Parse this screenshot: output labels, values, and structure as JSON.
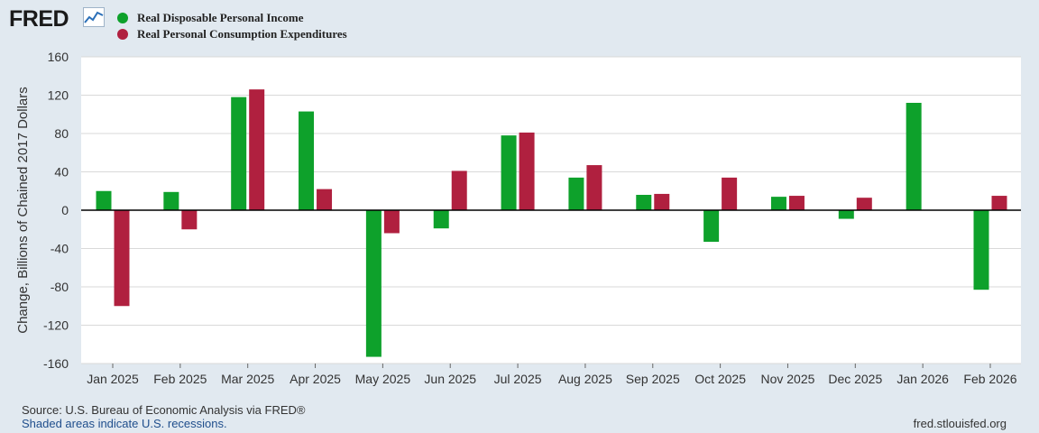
{
  "brand": {
    "logo_text": "FRED"
  },
  "colors": {
    "series1": "#0ea12b",
    "series2": "#b0203f",
    "background": "#e1e9f0",
    "plot_bg": "#ffffff"
  },
  "chart_data": {
    "type": "bar",
    "title": "",
    "xlabel": "",
    "ylabel": "Change, Billions of Chained 2017 Dollars",
    "ylim": [
      -160,
      160
    ],
    "yticks": [
      160,
      120,
      80,
      40,
      0,
      -40,
      -80,
      -120,
      -160
    ],
    "grid": true,
    "legend_position": "top-left",
    "categories": [
      "Jan 2025",
      "Feb 2025",
      "Mar 2025",
      "Apr 2025",
      "May 2025",
      "Jun 2025",
      "Jul 2025",
      "Aug 2025",
      "Sep 2025",
      "Oct 2025",
      "Nov 2025",
      "Dec 2025",
      "Jan 2026",
      "Feb 2026"
    ],
    "series": [
      {
        "name": "Real Disposable Personal Income",
        "color": "#0ea12b",
        "values": [
          20,
          19,
          118,
          103,
          -153,
          -19,
          78,
          34,
          16,
          -33,
          14,
          -9,
          112,
          -83
        ]
      },
      {
        "name": "Real Personal Consumption Expenditures",
        "color": "#b0203f",
        "values": [
          -100,
          -20,
          126,
          22,
          -24,
          41,
          81,
          47,
          17,
          34,
          15,
          13,
          null,
          15
        ]
      }
    ]
  },
  "footer": {
    "source": "Source: U.S. Bureau of Economic Analysis via FRED®",
    "recession_note": "Shaded areas indicate U.S. recessions.",
    "site": "fred.stlouisfed.org"
  }
}
